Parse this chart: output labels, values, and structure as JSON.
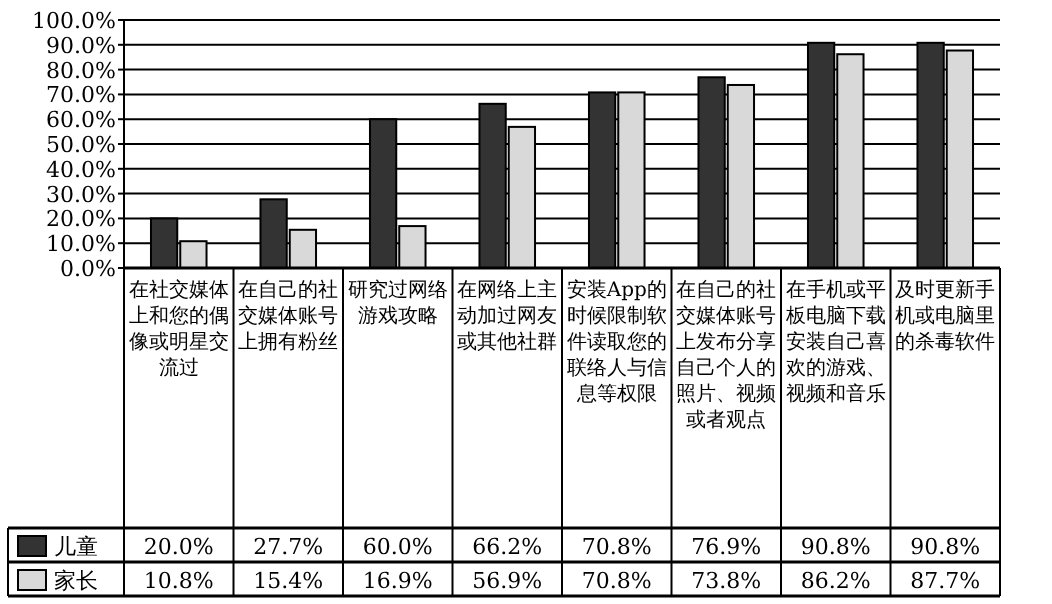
{
  "chart_data": {
    "type": "bar",
    "categories": [
      "在社交媒体上和您的偶像或明星交流过",
      "在自己的社交媒体账号上拥有粉丝",
      "研究过网络游戏攻略",
      "在网络上主动加过网友或其他社群",
      "安装App的时候限制软件读取您的联络人与信息等权限",
      "在自己的社交媒体账号上发布分享自己个人的照片、视频或者观点",
      "在手机或平板电脑下载安装自己喜欢的游戏、视频和音乐",
      "及时更新手机或电脑里的杀毒软件"
    ],
    "series": [
      {
        "name": "儿童",
        "color": "#333333",
        "values": [
          20.0,
          27.7,
          60.0,
          66.2,
          70.8,
          76.9,
          90.8,
          90.8
        ],
        "value_labels": [
          "20.0%",
          "27.7%",
          "60.0%",
          "66.2%",
          "70.8%",
          "76.9%",
          "90.8%",
          "90.8%"
        ]
      },
      {
        "name": "家长",
        "color": "#d9d9d9",
        "values": [
          10.8,
          15.4,
          16.9,
          56.9,
          70.8,
          73.8,
          86.2,
          87.7
        ],
        "value_labels": [
          "10.8%",
          "15.4%",
          "16.9%",
          "56.9%",
          "70.8%",
          "73.8%",
          "86.2%",
          "87.7%"
        ]
      }
    ],
    "ylim": [
      0,
      100
    ],
    "yticks": [
      {
        "value": 0,
        "label": "0.0%"
      },
      {
        "value": 10,
        "label": "10.0%"
      },
      {
        "value": 20,
        "label": "20.0%"
      },
      {
        "value": 30,
        "label": "30.0%"
      },
      {
        "value": 40,
        "label": "40.0%"
      },
      {
        "value": 50,
        "label": "50.0%"
      },
      {
        "value": 60,
        "label": "60.0%"
      },
      {
        "value": 70,
        "label": "70.0%"
      },
      {
        "value": 80,
        "label": "80.0%"
      },
      {
        "value": 90,
        "label": "90.0%"
      },
      {
        "value": 100,
        "label": "100.0%"
      }
    ],
    "grid": "y",
    "legend": "bottom left"
  }
}
